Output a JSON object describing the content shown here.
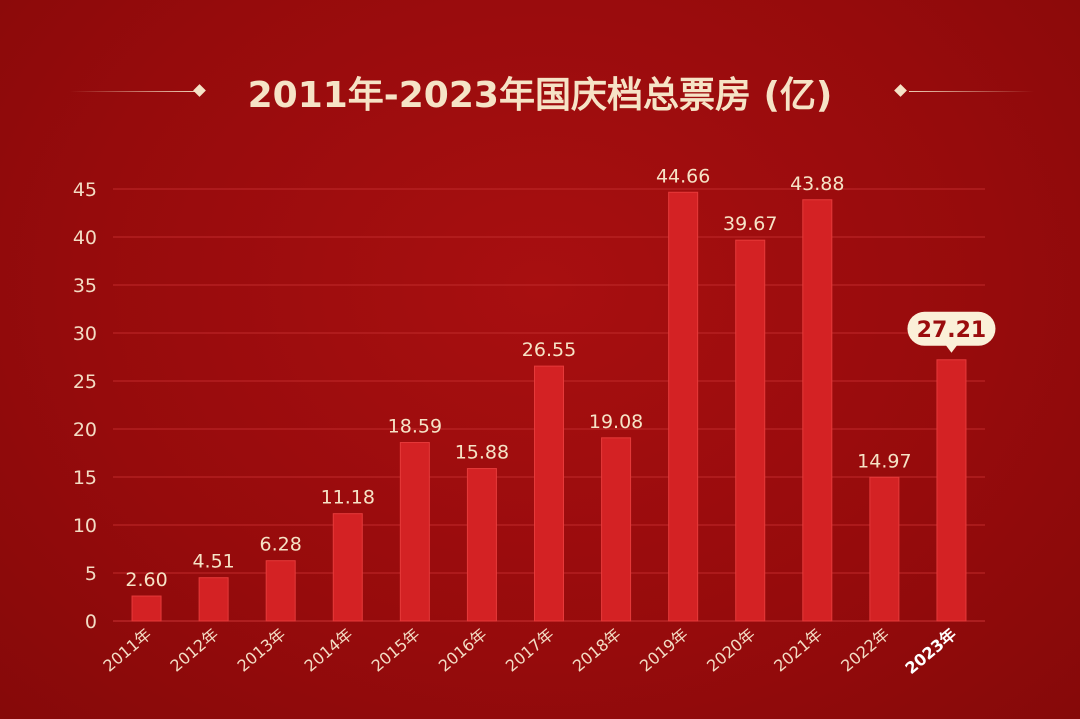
{
  "title": "2011年-2023年国庆档总票房 (亿)",
  "chart_data": {
    "type": "bar",
    "title": "2011年-2023年国庆档总票房 (亿)",
    "categories": [
      "2011年",
      "2012年",
      "2013年",
      "2014年",
      "2015年",
      "2016年",
      "2017年",
      "2018年",
      "2019年",
      "2020年",
      "2021年",
      "2022年",
      "2023年"
    ],
    "values": [
      2.6,
      4.51,
      6.28,
      11.18,
      18.59,
      15.88,
      26.55,
      19.08,
      44.66,
      39.67,
      43.88,
      14.97,
      27.21
    ],
    "value_labels": [
      "2.60",
      "4.51",
      "6.28",
      "11.18",
      "18.59",
      "15.88",
      "26.55",
      "19.08",
      "44.66",
      "39.67",
      "43.88",
      "14.97",
      "27.21"
    ],
    "highlight_index": 12,
    "ylim": [
      0,
      45
    ],
    "yticks": [
      0,
      5,
      10,
      15,
      20,
      25,
      30,
      35,
      40,
      45
    ],
    "xlabel": "",
    "ylabel": "",
    "grid": true,
    "colors": {
      "bar": "#d42224",
      "bar_edge": "#e63a3a",
      "grid": "#c0292a",
      "label": "#f6e3c6",
      "background": "#9e0d0e"
    }
  }
}
